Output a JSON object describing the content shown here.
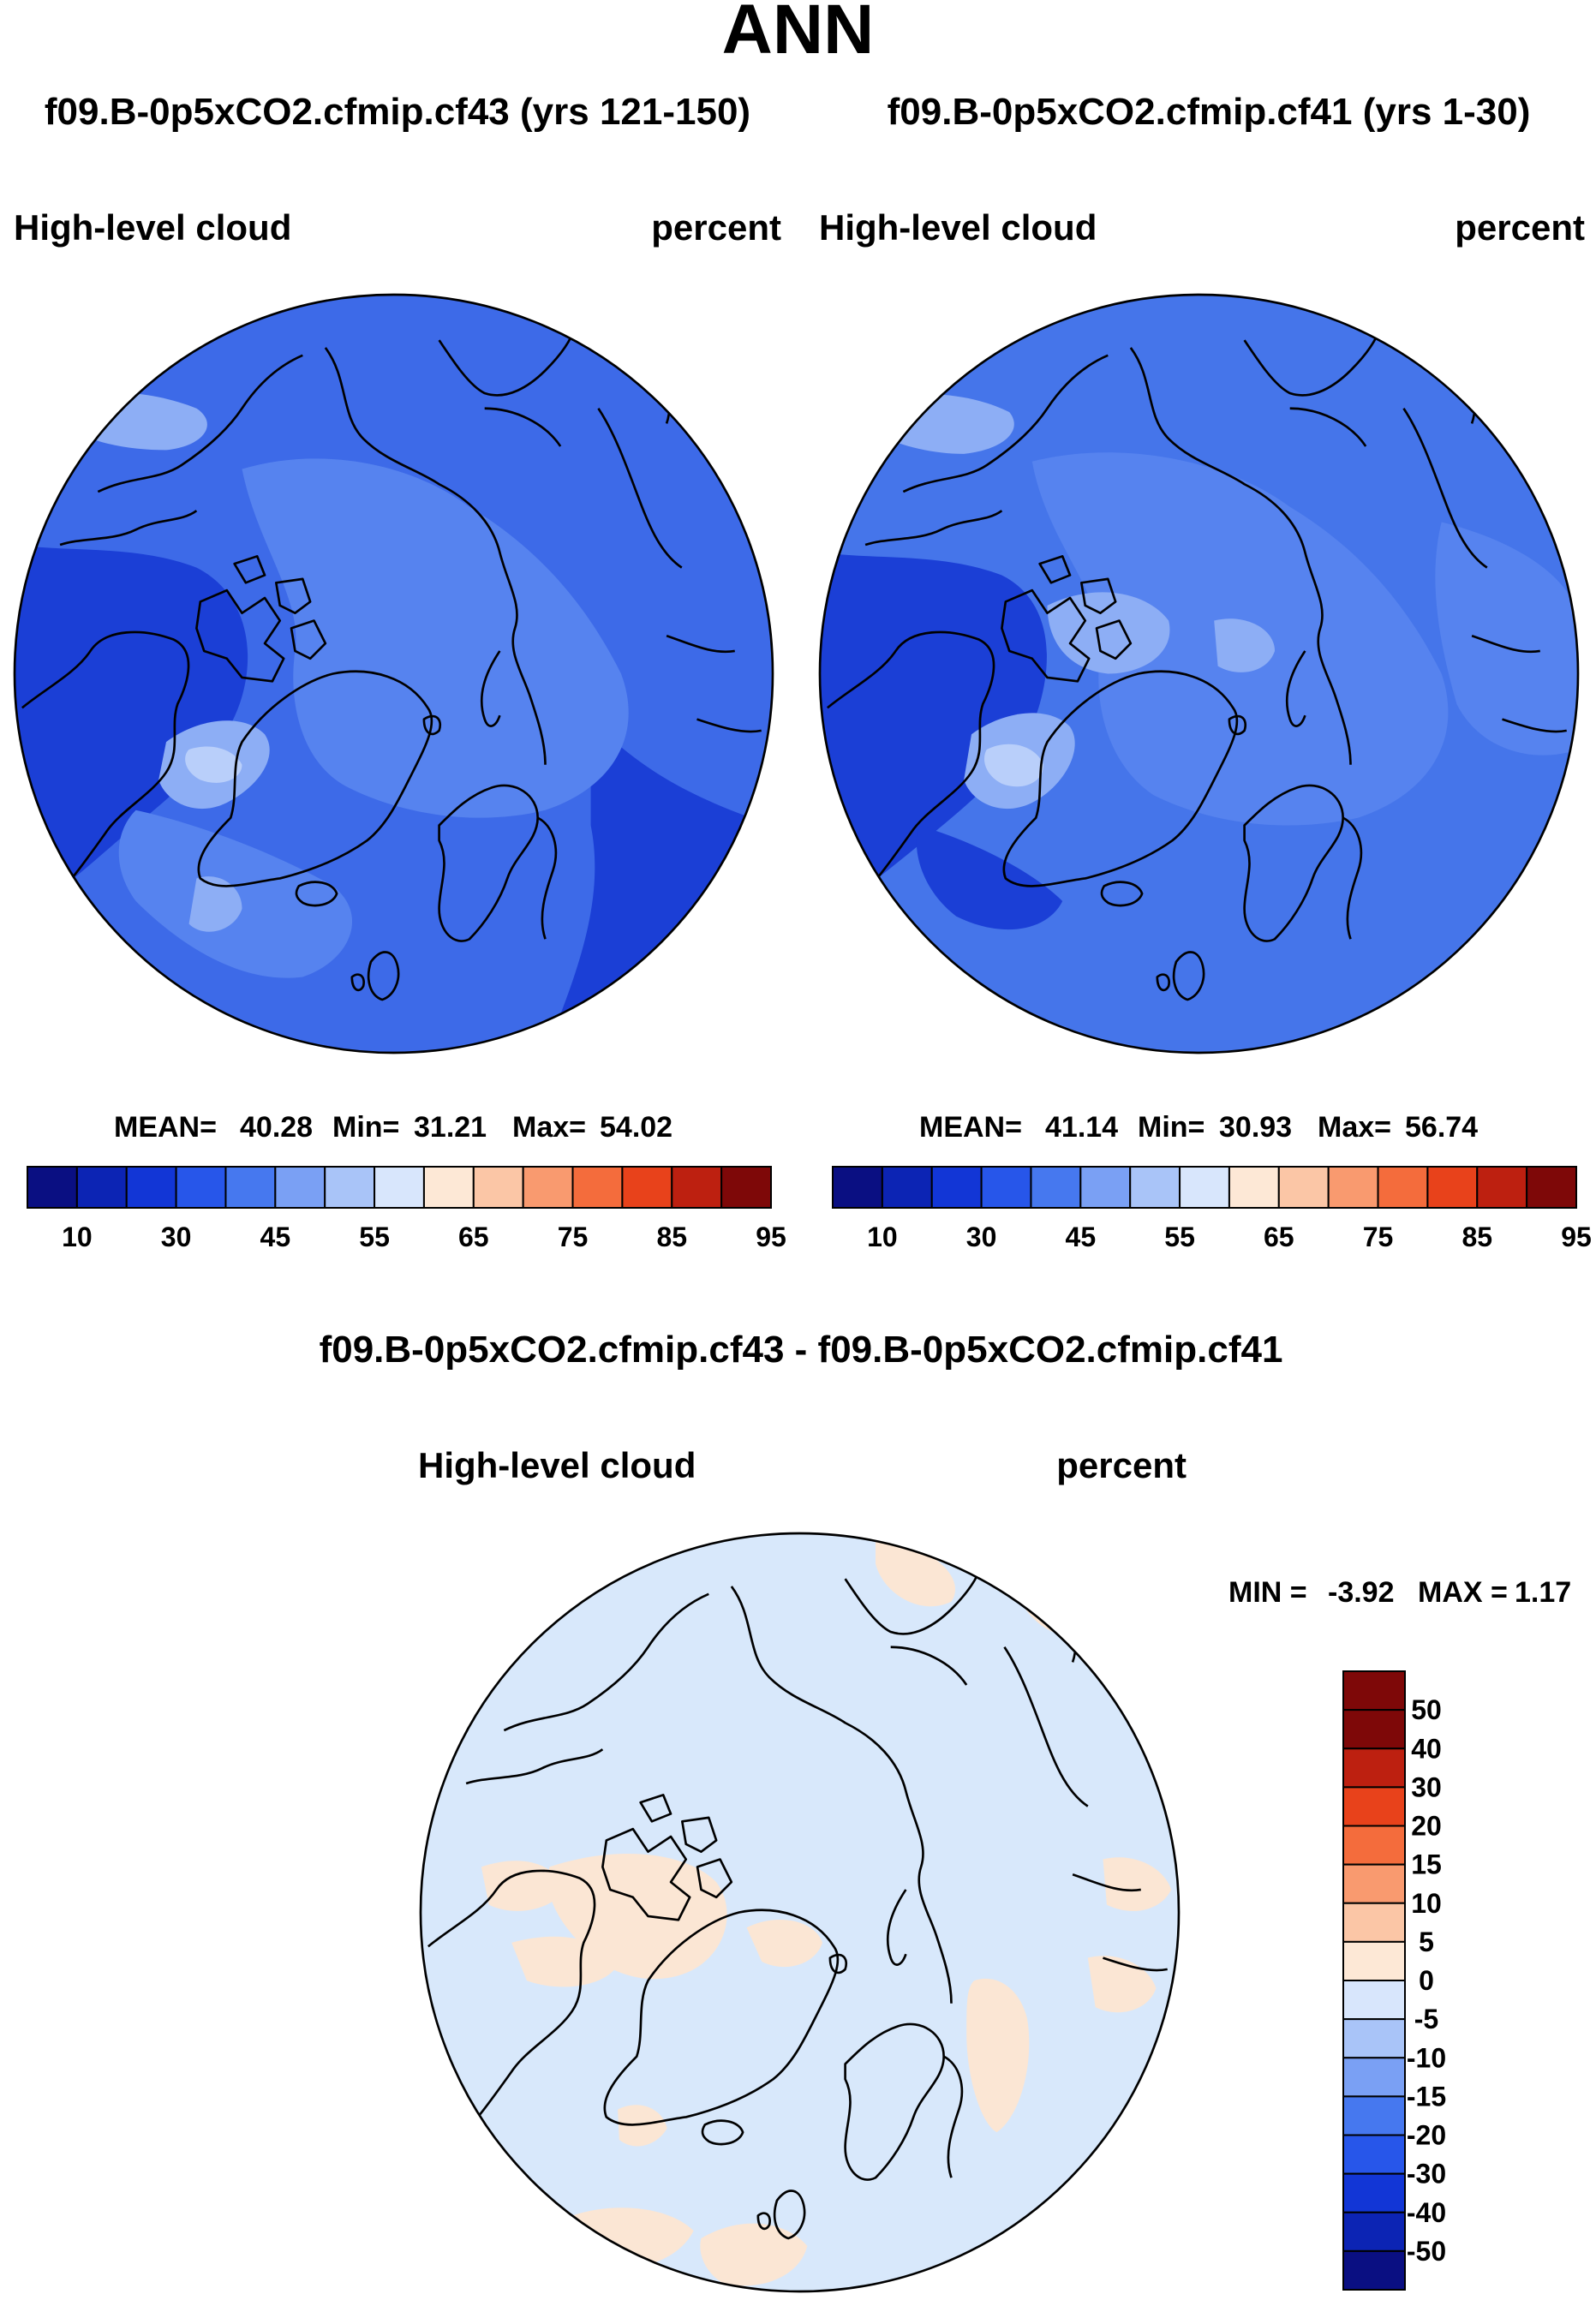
{
  "title": "ANN",
  "panels": [
    {
      "case_title": "f09.B-0p5xCO2.cfmip.cf43 (yrs 121-150)",
      "variable": "High-level cloud",
      "units": "percent",
      "stats": {
        "mean_label": "MEAN=",
        "mean": "40.28",
        "min_label": "Min=",
        "min": "31.21",
        "max_label": "Max=",
        "max": "54.02"
      },
      "base_color": "#3d6ae8",
      "tones": [
        "#1b3fd6",
        "#5683ef",
        "#8daef5",
        "#b9cffa"
      ]
    },
    {
      "case_title": "f09.B-0p5xCO2.cfmip.cf41 (yrs 1-30)",
      "variable": "High-level cloud",
      "units": "percent",
      "stats": {
        "mean_label": "MEAN=",
        "mean": "41.14",
        "min_label": "Min=",
        "min": "30.93",
        "max_label": "Max=",
        "max": "56.74"
      },
      "base_color": "#4575ea",
      "tones": [
        "#1b3fd6",
        "#5683ef",
        "#8daef5",
        "#b9cffa"
      ]
    }
  ],
  "colorbar": {
    "colors": [
      "#0a0f82",
      "#0c24b4",
      "#1236d6",
      "#2756ea",
      "#4678ef",
      "#7aa0f4",
      "#a9c4f8",
      "#d8e6fc",
      "#fde8d6",
      "#fbc6a6",
      "#f99a6f",
      "#f46c3c",
      "#e8421b",
      "#bd2010",
      "#7e0808"
    ],
    "ticks": [
      "10",
      "30",
      "45",
      "55",
      "65",
      "75",
      "85",
      "95"
    ]
  },
  "diff": {
    "title": "f09.B-0p5xCO2.cfmip.cf43 - f09.B-0p5xCO2.cfmip.cf41",
    "variable": "High-level cloud",
    "units": "percent",
    "minmax": {
      "min_label": "MIN =",
      "min": "-3.92",
      "max_label": "MAX =",
      "max": "1.17"
    },
    "base_color": "#d8e8fb",
    "positive_color": "#fbe6d4",
    "colorbar_colors": [
      "#7e0808",
      "#bd2010",
      "#e8421b",
      "#f46c3c",
      "#f99a6f",
      "#fbc6a6",
      "#fde8d6",
      "#d8e6fc",
      "#a9c4f8",
      "#7aa0f4",
      "#4678ef",
      "#2756ea",
      "#1236d6",
      "#0c24b4",
      "#0a0f82"
    ],
    "colorbar_ticks": [
      "50",
      "40",
      "30",
      "20",
      "15",
      "10",
      "5",
      "0",
      "-5",
      "-10",
      "-15",
      "-20",
      "-30",
      "-40",
      "-50"
    ]
  }
}
